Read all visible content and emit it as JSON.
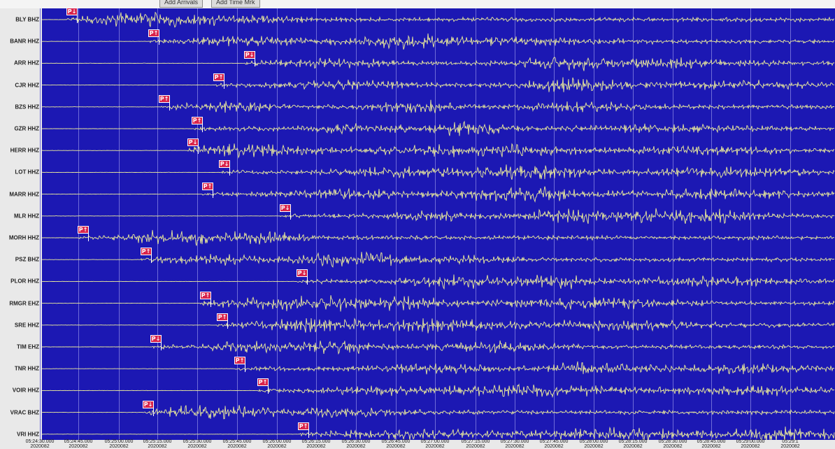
{
  "toolbar": {
    "buttons": [
      "Add Arrivals",
      "Add Time Mrk"
    ]
  },
  "colors": {
    "background": "#1c18b3",
    "trace": "#ecec9a",
    "grid": "#6f6cd8",
    "pick": "#d9244c"
  },
  "stations": [
    {
      "label": "BLY BHZ",
      "pick": "P↓"
    },
    {
      "label": "BANR HHZ",
      "pick": "P↑"
    },
    {
      "label": "ARR HHZ",
      "pick": "P↓"
    },
    {
      "label": "CJR HHZ",
      "pick": "P↑"
    },
    {
      "label": "BZS HHZ",
      "pick": "P↑"
    },
    {
      "label": "GZR HHZ",
      "pick": "P↑"
    },
    {
      "label": "HERR HHZ",
      "pick": "P↓"
    },
    {
      "label": "LOT HHZ",
      "pick": "P↓"
    },
    {
      "label": "MARR HHZ",
      "pick": "P↑"
    },
    {
      "label": "MLR HHZ",
      "pick": "P↓"
    },
    {
      "label": "MORH HHZ",
      "pick": "P↑"
    },
    {
      "label": "PSZ BHZ",
      "pick": "P↑"
    },
    {
      "label": "PLOR HHZ",
      "pick": "P↓"
    },
    {
      "label": "RMGR EHZ",
      "pick": "P↑"
    },
    {
      "label": "SRE HHZ",
      "pick": "P↑"
    },
    {
      "label": "TIM EHZ",
      "pick": "P↓"
    },
    {
      "label": "TNR HHZ",
      "pick": "P↑"
    },
    {
      "label": "VOIR HHZ",
      "pick": "P↑"
    },
    {
      "label": "VRAC BHZ",
      "pick": "P↓"
    },
    {
      "label": "VRI HHZ",
      "pick": "P↑"
    }
  ],
  "time_axis": {
    "ticks": [
      {
        "time": "05:24:30.000",
        "date": "2020082"
      },
      {
        "time": "05:24:45.000",
        "date": "2020082"
      },
      {
        "time": "05:25:00.000",
        "date": "2020082"
      },
      {
        "time": "05:25:15.000",
        "date": "2020082"
      },
      {
        "time": "05:25:30.000",
        "date": "2020082"
      },
      {
        "time": "05:25:45.000",
        "date": "2020082"
      },
      {
        "time": "05:26:00.000",
        "date": "2020082"
      },
      {
        "time": "05:26:15.000",
        "date": "2020082"
      },
      {
        "time": "05:26:30.000",
        "date": "2020082"
      },
      {
        "time": "05:26:45.000",
        "date": "2020082"
      },
      {
        "time": "05:27:00.000",
        "date": "2020082"
      },
      {
        "time": "05:27:15.000",
        "date": "2020082"
      },
      {
        "time": "05:27:30.000",
        "date": "2020082"
      },
      {
        "time": "05:27:45.000",
        "date": "2020082"
      },
      {
        "time": "05:28:00.000",
        "date": "2020082"
      },
      {
        "time": "05:28:15.000",
        "date": "2020082"
      },
      {
        "time": "05:28:30.000",
        "date": "2020082"
      },
      {
        "time": "05:28:45.000",
        "date": "2020082"
      },
      {
        "time": "05:29:00.000",
        "date": "2020082"
      },
      {
        "time": "05:29:1",
        "date": "2020082"
      }
    ]
  }
}
